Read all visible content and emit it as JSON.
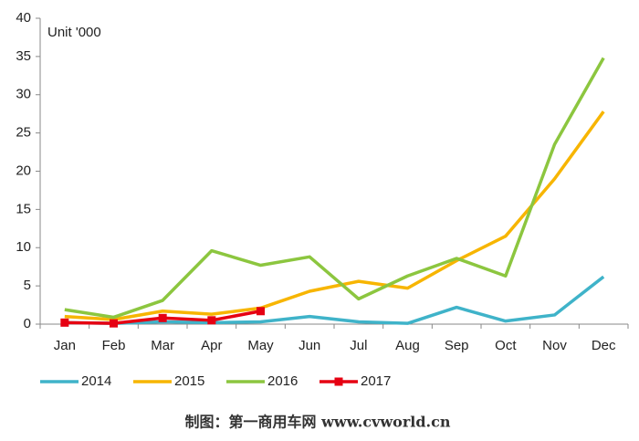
{
  "chart_data": {
    "type": "line",
    "unit_label": "Unit '000",
    "categories": [
      "Jan",
      "Feb",
      "Mar",
      "Apr",
      "May",
      "Jun",
      "Jul",
      "Aug",
      "Sep",
      "Oct",
      "Nov",
      "Dec"
    ],
    "series": [
      {
        "name": "2014",
        "color": "#3fb3c9",
        "values": [
          0.2,
          0.1,
          0.3,
          0.2,
          0.3,
          1.0,
          0.3,
          0.1,
          2.2,
          0.4,
          1.2,
          6.2
        ]
      },
      {
        "name": "2015",
        "color": "#f7b500",
        "values": [
          1.0,
          0.6,
          1.7,
          1.3,
          2.1,
          4.3,
          5.6,
          4.7,
          8.3,
          11.5,
          19,
          27.8
        ]
      },
      {
        "name": "2016",
        "color": "#8cc63f",
        "values": [
          1.9,
          0.9,
          3.1,
          9.6,
          7.7,
          8.8,
          3.3,
          6.3,
          8.6,
          6.3,
          23.5,
          34.8
        ]
      },
      {
        "name": "2017",
        "color": "#e60012",
        "marker": "square",
        "values": [
          0.2,
          0.1,
          0.8,
          0.5,
          1.7,
          null,
          null,
          null,
          null,
          null,
          null,
          null
        ]
      }
    ],
    "ylim": [
      0,
      40
    ],
    "yticks": [
      0,
      5,
      10,
      15,
      20,
      25,
      30,
      35,
      40
    ],
    "legend": "bottom",
    "footer": "制图：第一商用车网 www.cvworld.cn"
  }
}
